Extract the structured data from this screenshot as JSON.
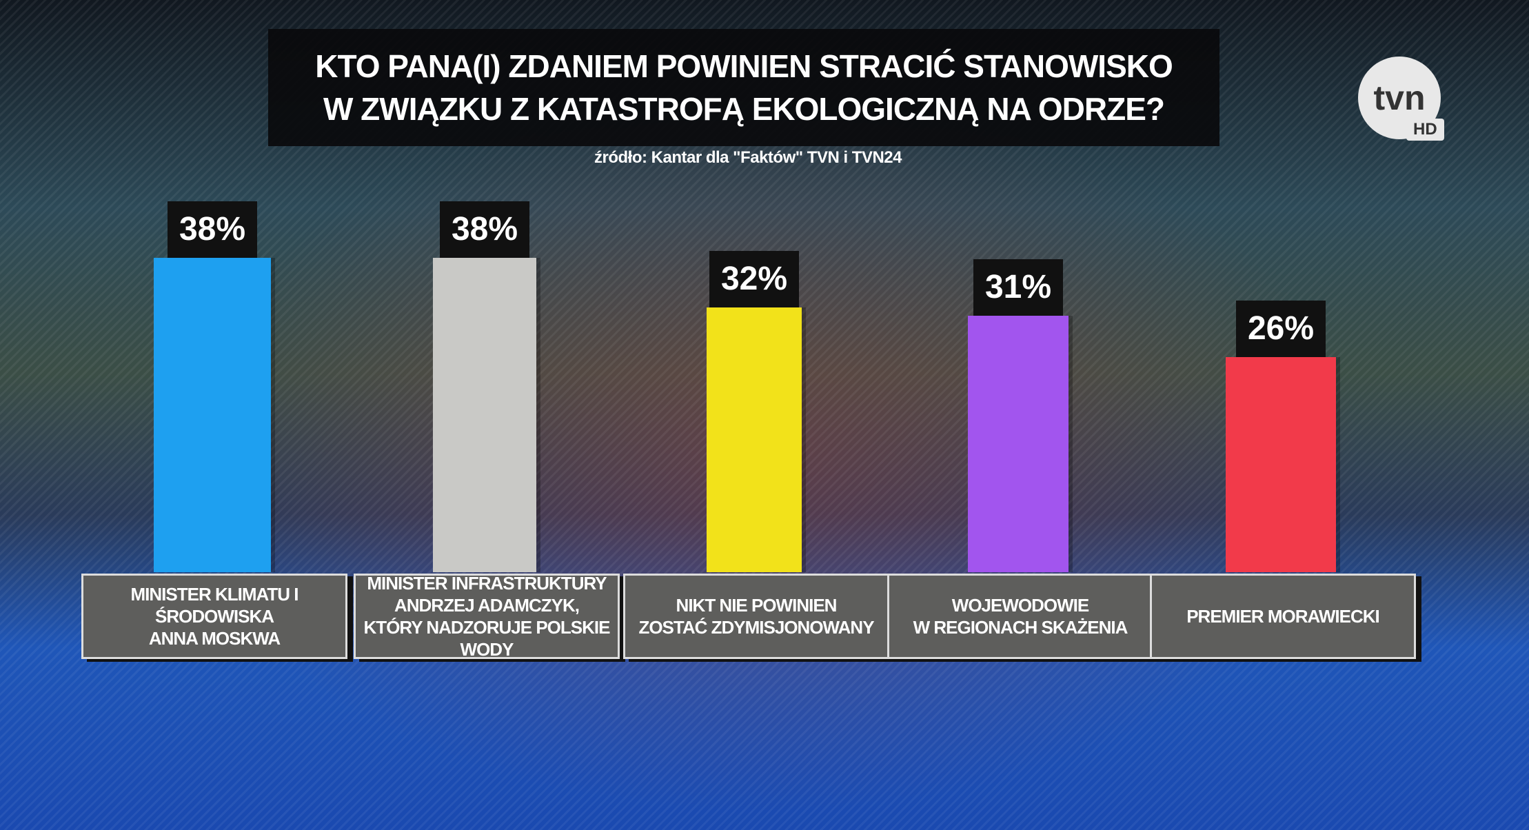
{
  "chart_data": {
    "type": "bar",
    "title": "KTO PANA(I) ZDANIEM POWINIEN STRACIĆ STANOWISKO\nW ZWIĄZKU Z KATASTROFĄ EKOLOGICZNĄ NA ODRZE?",
    "subtitle": "źródło: Kantar dla \"Faktów\" TVN i TVN24",
    "categories": [
      "MINISTER KLIMATU I ŚRODOWISKA\nANNA MOSKWA",
      "MINISTER INFRASTRUKTURY\nANDRZEJ ADAMCZYK,\nKTÓRY NADZORUJE POLSKIE WODY",
      "NIKT NIE POWINIEN\nZOSTAĆ ZDYMISJONOWANY",
      "WOJEWODOWIE\nW REGIONACH SKAŻENIA",
      "PREMIER MORAWIECKI"
    ],
    "values": [
      38,
      38,
      32,
      31,
      26
    ],
    "value_labels": [
      "38%",
      "38%",
      "32%",
      "31%",
      "26%"
    ],
    "colors": [
      "#1ea0f0",
      "#c9c9c6",
      "#f2e21a",
      "#a255ee",
      "#f23a4a"
    ]
  },
  "logo": {
    "text": "tvn",
    "badge": "HD"
  }
}
